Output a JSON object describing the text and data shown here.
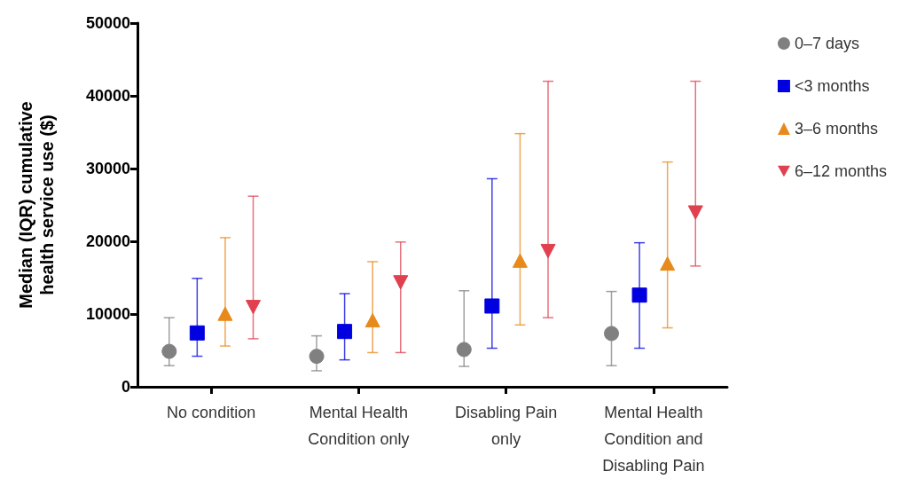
{
  "chart_data": {
    "type": "scatter",
    "ylabel": "Median (IQR) cumulative\nhealth service use ($)",
    "categories": [
      "No condition",
      "Mental Health\nCondition only",
      "Disabling Pain\nonly",
      "Mental Health\nCondition and\nDisabling Pain"
    ],
    "series": [
      {
        "name": "0–7 days",
        "color": "#808080",
        "marker": "circle",
        "values": [
          5000,
          4300,
          5200,
          7400
        ],
        "errors": [
          [
            2900,
            9500
          ],
          [
            2200,
            7000
          ],
          [
            2800,
            13200
          ],
          [
            2900,
            13100
          ]
        ]
      },
      {
        "name": "<3 months",
        "color": "#0000e0",
        "marker": "square",
        "values": [
          7400,
          7600,
          11100,
          12600
        ],
        "errors": [
          [
            4200,
            14900
          ],
          [
            3700,
            12800
          ],
          [
            5300,
            28600
          ],
          [
            5300,
            19800
          ]
        ]
      },
      {
        "name": "3–6 months",
        "color": "#e8891c",
        "marker": "triangle",
        "values": [
          9900,
          9000,
          17200,
          16800
        ],
        "errors": [
          [
            5600,
            20500
          ],
          [
            4700,
            17200
          ],
          [
            8500,
            34800
          ],
          [
            8100,
            30900
          ]
        ]
      },
      {
        "name": "6–12 months",
        "color": "#e0404f",
        "marker": "triangle-down",
        "values": [
          11100,
          14500,
          18800,
          24100
        ],
        "errors": [
          [
            6600,
            26200
          ],
          [
            4700,
            19900
          ],
          [
            9500,
            42000
          ],
          [
            16600,
            42000
          ]
        ]
      }
    ],
    "ylim": [
      0,
      50000
    ],
    "yticks": [
      0,
      10000,
      20000,
      30000,
      40000,
      50000
    ],
    "grid": false,
    "legend": "top right"
  }
}
